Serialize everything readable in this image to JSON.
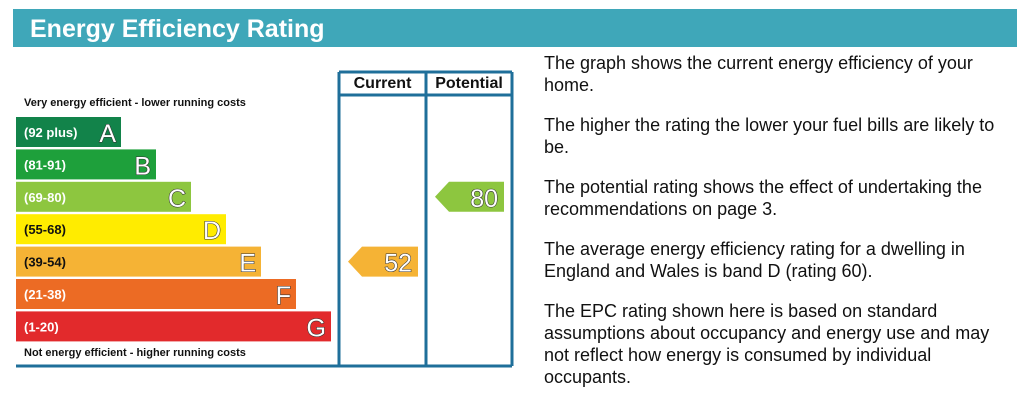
{
  "header": {
    "title": "Energy Efficiency Rating"
  },
  "chart_data": {
    "type": "bar",
    "columns": [
      "Current",
      "Potential"
    ],
    "top_label": "Very energy efficient - lower running costs",
    "bottom_label": "Not energy efficient - higher running costs",
    "bands": [
      {
        "range": "(92 plus)",
        "letter": "A",
        "color": "#12834a"
      },
      {
        "range": "(81-91)",
        "letter": "B",
        "color": "#1ea03b"
      },
      {
        "range": "(69-80)",
        "letter": "C",
        "color": "#8dc63f"
      },
      {
        "range": "(55-68)",
        "letter": "D",
        "color": "#ffec00"
      },
      {
        "range": "(39-54)",
        "letter": "E",
        "color": "#f5b335"
      },
      {
        "range": "(21-38)",
        "letter": "F",
        "color": "#ec6b24"
      },
      {
        "range": "(1-20)",
        "letter": "G",
        "color": "#e22a2c"
      }
    ],
    "current": {
      "value": 52,
      "band": "E"
    },
    "potential": {
      "value": 80,
      "band": "C"
    }
  },
  "description": [
    "The graph shows the current energy efficiency of your home.",
    "The higher the rating the lower your fuel bills are likely to be.",
    "The potential rating shows the effect of undertaking the recommendations on page 3.",
    "The average energy efficiency rating for a dwelling in England and Wales is band D (rating 60).",
    "The EPC rating shown here is based on standard assumptions about occupancy and energy use and may not reflect how energy is consumed by individual occupants."
  ],
  "colors": {
    "header": "#3fa7b9",
    "frame": "#1f6f9a"
  }
}
